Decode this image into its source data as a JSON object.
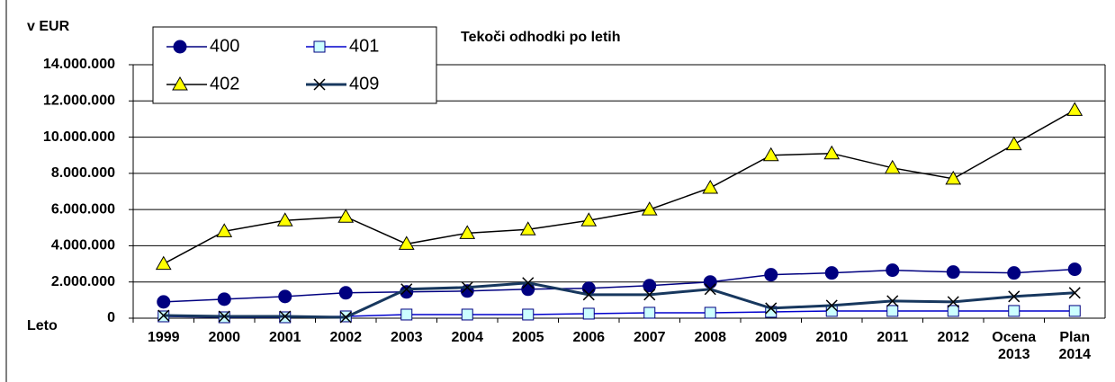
{
  "chart_data": {
    "type": "line",
    "title": "Tekoči odhodki po letih",
    "y_label": "v EUR",
    "x_label": "Leto",
    "categories": [
      "1999",
      "2000",
      "2001",
      "2002",
      "2003",
      "2004",
      "2005",
      "2006",
      "2007",
      "2008",
      "2009",
      "2010",
      "2011",
      "2012",
      "Ocena 2013",
      "Plan 2014"
    ],
    "series": [
      {
        "name": "400",
        "color": "#000080",
        "marker": "circle",
        "values": [
          900000,
          1050000,
          1200000,
          1400000,
          1450000,
          1500000,
          1600000,
          1650000,
          1800000,
          2000000,
          2400000,
          2500000,
          2650000,
          2550000,
          2500000,
          2700000
        ]
      },
      {
        "name": "401",
        "color": "#0000cc",
        "marker": "square",
        "values": [
          100000,
          50000,
          50000,
          100000,
          200000,
          200000,
          200000,
          250000,
          300000,
          300000,
          350000,
          400000,
          400000,
          400000,
          400000,
          400000
        ]
      },
      {
        "name": "402",
        "color": "#000000",
        "marker": "triangle",
        "values": [
          3000000,
          4800000,
          5400000,
          5600000,
          4100000,
          4700000,
          4900000,
          5400000,
          6000000,
          7200000,
          9000000,
          9100000,
          8300000,
          7700000,
          9600000,
          11500000
        ]
      },
      {
        "name": "409",
        "color": "#17375e",
        "marker": "x",
        "values": [
          150000,
          100000,
          100000,
          50000,
          1600000,
          1700000,
          1950000,
          1300000,
          1300000,
          1600000,
          550000,
          700000,
          950000,
          900000,
          1200000,
          1400000
        ]
      }
    ],
    "ylim": [
      0,
      14000000
    ],
    "yticks": [
      0,
      {
        "value": 2000000,
        "label": "2.000.000"
      },
      {
        "value": 4000000,
        "label": "4.000.000"
      },
      {
        "value": 6000000,
        "label": "6.000.000"
      },
      {
        "value": 8000000,
        "label": "8.000.000"
      },
      {
        "value": 10000000,
        "label": "10.000.000"
      },
      {
        "value": 12000000,
        "label": "12.000.000"
      },
      {
        "value": 14000000,
        "label": "14.000.000"
      }
    ],
    "grid": true
  }
}
